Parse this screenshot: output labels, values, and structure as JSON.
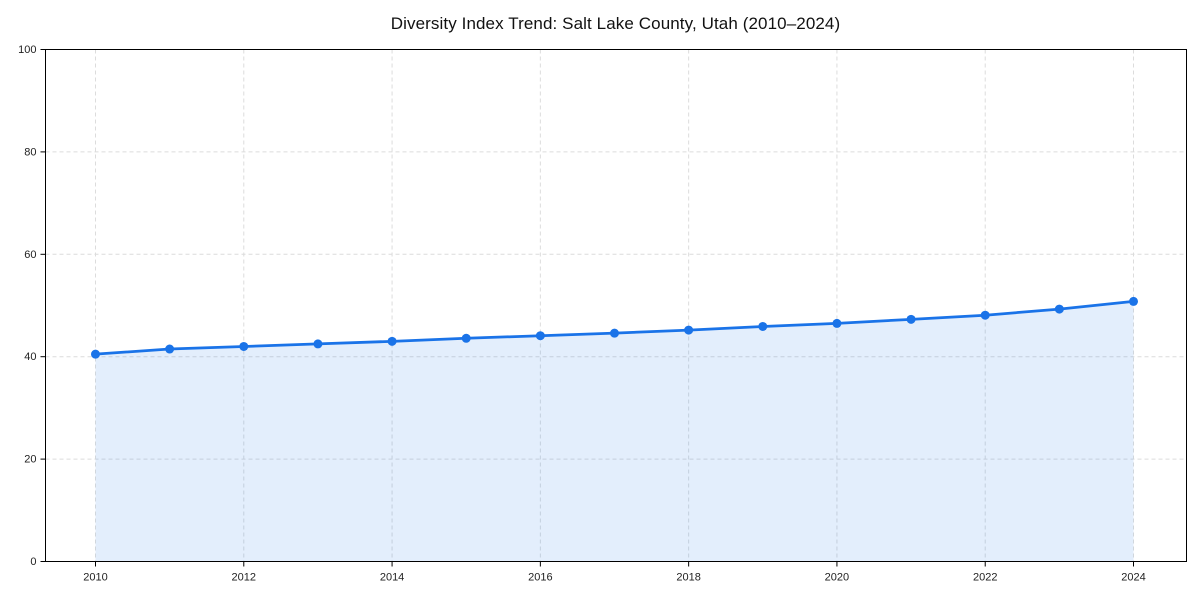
{
  "page": {
    "background": "#ffffff"
  },
  "chart_data": {
    "type": "area",
    "title": "Diversity Index Trend: Salt Lake County, Utah (2010–2024)",
    "x": [
      2010,
      2011,
      2012,
      2013,
      2014,
      2015,
      2016,
      2017,
      2018,
      2019,
      2020,
      2021,
      2022,
      2023,
      2024
    ],
    "values": [
      40.5,
      41.5,
      42.0,
      42.5,
      43.0,
      43.6,
      44.1,
      44.6,
      45.2,
      45.9,
      46.5,
      47.3,
      48.1,
      49.3,
      50.8
    ],
    "xlabel": "",
    "ylabel": "",
    "ylim": [
      0,
      100
    ],
    "yticks": [
      0,
      20,
      40,
      60,
      80,
      100
    ],
    "xticks": [
      2010,
      2012,
      2014,
      2016,
      2018,
      2020,
      2022,
      2024
    ],
    "grid": "dashed",
    "legend": "none",
    "colors": {
      "line": "#1a73e8",
      "marker": "#1a73e8",
      "fill_rgba": "rgba(26,115,232,0.12)",
      "grid": "#dcdcdc",
      "spine": "#000000",
      "title": "#111111",
      "tick": "#222222"
    }
  }
}
